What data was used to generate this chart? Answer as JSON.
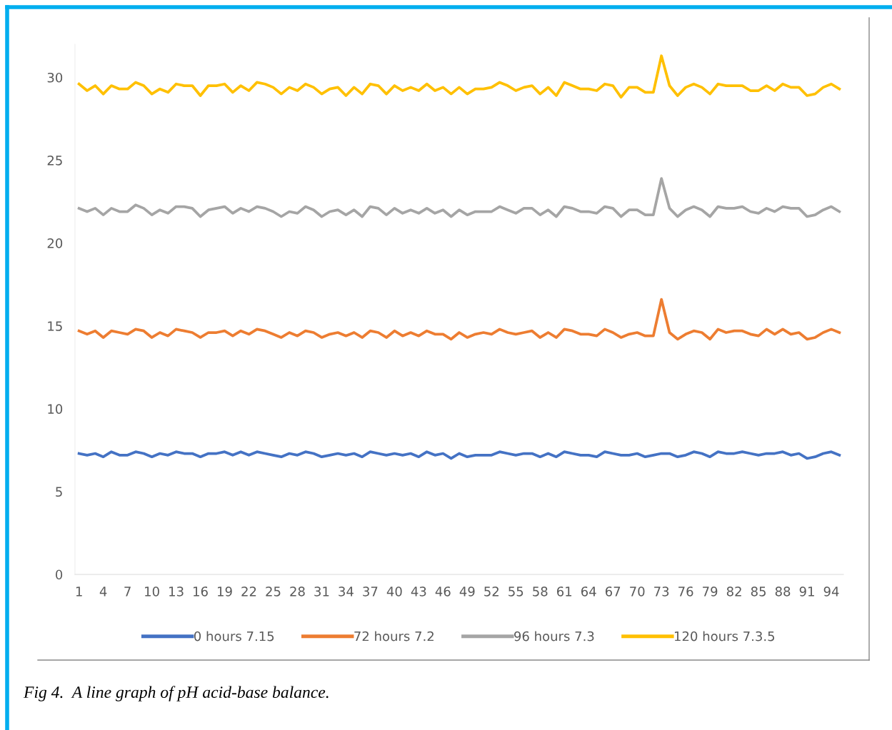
{
  "chart_data": {
    "type": "line",
    "categories": [
      "1",
      null,
      null,
      "4",
      null,
      null,
      "7",
      null,
      null,
      "10",
      null,
      null,
      "13",
      null,
      null,
      "16",
      null,
      null,
      "19",
      null,
      null,
      "22",
      null,
      null,
      "25",
      null,
      null,
      "28",
      null,
      null,
      "31",
      null,
      null,
      "34",
      null,
      null,
      "37",
      null,
      null,
      "40",
      null,
      null,
      "43",
      null,
      null,
      "46",
      null,
      null,
      "49",
      null,
      null,
      "52",
      null,
      null,
      "55",
      null,
      null,
      "58",
      null,
      null,
      "61",
      null,
      null,
      "64",
      null,
      null,
      "67",
      null,
      null,
      "70",
      null,
      null,
      "73",
      null,
      null,
      "76",
      null,
      null,
      "79",
      null,
      null,
      "82",
      null,
      null,
      "85",
      null,
      null,
      "88",
      null,
      null,
      "91",
      null,
      null,
      "94",
      null
    ],
    "series": [
      {
        "name": "0 hours 7.15",
        "color": "#4472c4",
        "values": [
          7.3,
          7.2,
          7.3,
          7.1,
          7.4,
          7.2,
          7.2,
          7.4,
          7.3,
          7.1,
          7.3,
          7.2,
          7.4,
          7.3,
          7.3,
          7.1,
          7.3,
          7.3,
          7.4,
          7.2,
          7.4,
          7.2,
          7.4,
          7.3,
          7.2,
          7.1,
          7.3,
          7.2,
          7.4,
          7.3,
          7.1,
          7.2,
          7.3,
          7.2,
          7.3,
          7.1,
          7.4,
          7.3,
          7.2,
          7.3,
          7.2,
          7.3,
          7.1,
          7.4,
          7.2,
          7.3,
          7.0,
          7.3,
          7.1,
          7.2,
          7.2,
          7.2,
          7.4,
          7.3,
          7.2,
          7.3,
          7.3,
          7.1,
          7.3,
          7.1,
          7.4,
          7.3,
          7.2,
          7.2,
          7.1,
          7.4,
          7.3,
          7.2,
          7.2,
          7.3,
          7.1,
          7.2,
          7.3,
          7.3,
          7.1,
          7.2,
          7.4,
          7.3,
          7.1,
          7.4,
          7.3,
          7.3,
          7.4,
          7.3,
          7.2,
          7.3,
          7.3,
          7.4,
          7.2,
          7.3,
          7.0,
          7.1,
          7.3,
          7.4,
          7.2
        ]
      },
      {
        "name": "72 hours 7.2",
        "color": "#ed7d31",
        "values": [
          14.7,
          14.5,
          14.7,
          14.3,
          14.7,
          14.6,
          14.5,
          14.8,
          14.7,
          14.3,
          14.6,
          14.4,
          14.8,
          14.7,
          14.6,
          14.3,
          14.6,
          14.6,
          14.7,
          14.4,
          14.7,
          14.5,
          14.8,
          14.7,
          14.5,
          14.3,
          14.6,
          14.4,
          14.7,
          14.6,
          14.3,
          14.5,
          14.6,
          14.4,
          14.6,
          14.3,
          14.7,
          14.6,
          14.3,
          14.7,
          14.4,
          14.6,
          14.4,
          14.7,
          14.5,
          14.5,
          14.2,
          14.6,
          14.3,
          14.5,
          14.6,
          14.5,
          14.8,
          14.6,
          14.5,
          14.6,
          14.7,
          14.3,
          14.6,
          14.3,
          14.8,
          14.7,
          14.5,
          14.5,
          14.4,
          14.8,
          14.6,
          14.3,
          14.5,
          14.6,
          14.4,
          14.4,
          16.6,
          14.6,
          14.2,
          14.5,
          14.7,
          14.6,
          14.2,
          14.8,
          14.6,
          14.7,
          14.7,
          14.5,
          14.4,
          14.8,
          14.5,
          14.8,
          14.5,
          14.6,
          14.2,
          14.3,
          14.6,
          14.8,
          14.6
        ]
      },
      {
        "name": "96 hours 7.3",
        "color": "#a5a5a5",
        "values": [
          22.1,
          21.9,
          22.1,
          21.7,
          22.1,
          21.9,
          21.9,
          22.3,
          22.1,
          21.7,
          22.0,
          21.8,
          22.2,
          22.2,
          22.1,
          21.6,
          22.0,
          22.1,
          22.2,
          21.8,
          22.1,
          21.9,
          22.2,
          22.1,
          21.9,
          21.6,
          21.9,
          21.8,
          22.2,
          22.0,
          21.6,
          21.9,
          22.0,
          21.7,
          22.0,
          21.6,
          22.2,
          22.1,
          21.7,
          22.1,
          21.8,
          22.0,
          21.8,
          22.1,
          21.8,
          22.0,
          21.6,
          22.0,
          21.7,
          21.9,
          21.9,
          21.9,
          22.2,
          22.0,
          21.8,
          22.1,
          22.1,
          21.7,
          22.0,
          21.6,
          22.2,
          22.1,
          21.9,
          21.9,
          21.8,
          22.2,
          22.1,
          21.6,
          22.0,
          22.0,
          21.7,
          21.7,
          23.9,
          22.1,
          21.6,
          22.0,
          22.2,
          22.0,
          21.6,
          22.2,
          22.1,
          22.1,
          22.2,
          21.9,
          21.8,
          22.1,
          21.9,
          22.2,
          22.1,
          22.1,
          21.6,
          21.7,
          22.0,
          22.2,
          21.9
        ]
      },
      {
        "name": "120 hours 7.3.5",
        "color": "#ffc000",
        "values": [
          29.6,
          29.2,
          29.5,
          29.0,
          29.5,
          29.3,
          29.3,
          29.7,
          29.5,
          29.0,
          29.3,
          29.1,
          29.6,
          29.5,
          29.5,
          28.9,
          29.5,
          29.5,
          29.6,
          29.1,
          29.5,
          29.2,
          29.7,
          29.6,
          29.4,
          29.0,
          29.4,
          29.2,
          29.6,
          29.4,
          29.0,
          29.3,
          29.4,
          28.9,
          29.4,
          29.0,
          29.6,
          29.5,
          29.0,
          29.5,
          29.2,
          29.4,
          29.2,
          29.6,
          29.2,
          29.4,
          29.0,
          29.4,
          29.0,
          29.3,
          29.3,
          29.4,
          29.7,
          29.5,
          29.2,
          29.4,
          29.5,
          29.0,
          29.4,
          28.9,
          29.7,
          29.5,
          29.3,
          29.3,
          29.2,
          29.6,
          29.5,
          28.8,
          29.4,
          29.4,
          29.1,
          29.1,
          31.3,
          29.5,
          28.9,
          29.4,
          29.6,
          29.4,
          29.0,
          29.6,
          29.5,
          29.5,
          29.5,
          29.2,
          29.2,
          29.5,
          29.2,
          29.6,
          29.4,
          29.4,
          28.9,
          29.0,
          29.4,
          29.6,
          29.3
        ]
      }
    ],
    "ylim": [
      0,
      32
    ],
    "yticks": [
      0,
      5,
      10,
      15,
      20,
      25,
      30
    ],
    "legend": "bottom",
    "annotations": [
      "Fig 4.  A line graph of pH acid-base balance."
    ]
  }
}
